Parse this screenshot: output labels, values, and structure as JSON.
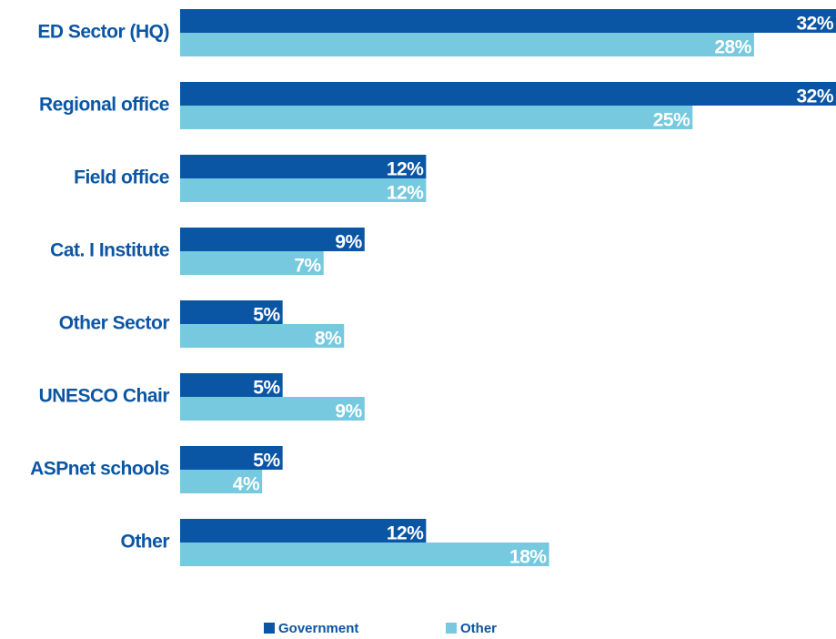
{
  "chart_data": {
    "type": "bar",
    "orientation": "horizontal",
    "categories": [
      "ED Sector (HQ)",
      "Regional office",
      "Field office",
      "Cat. I Institute",
      "Other Sector",
      "UNESCO Chair",
      "ASPnet schools",
      "Other"
    ],
    "series": [
      {
        "name": "Government",
        "color": "#0b56a4",
        "values": [
          32,
          32,
          12,
          9,
          5,
          5,
          5,
          12
        ],
        "value_labels": [
          "32%",
          "32%",
          "12%",
          "9%",
          "5%",
          "5%",
          "5%",
          "12%"
        ]
      },
      {
        "name": "Other",
        "color": "#76c9de",
        "values": [
          28,
          25,
          12,
          7,
          8,
          9,
          4,
          18
        ],
        "value_labels": [
          "28%",
          "25%",
          "12%",
          "7%",
          "8%",
          "9%",
          "4%",
          "18%"
        ]
      }
    ],
    "legend": "bottom"
  }
}
